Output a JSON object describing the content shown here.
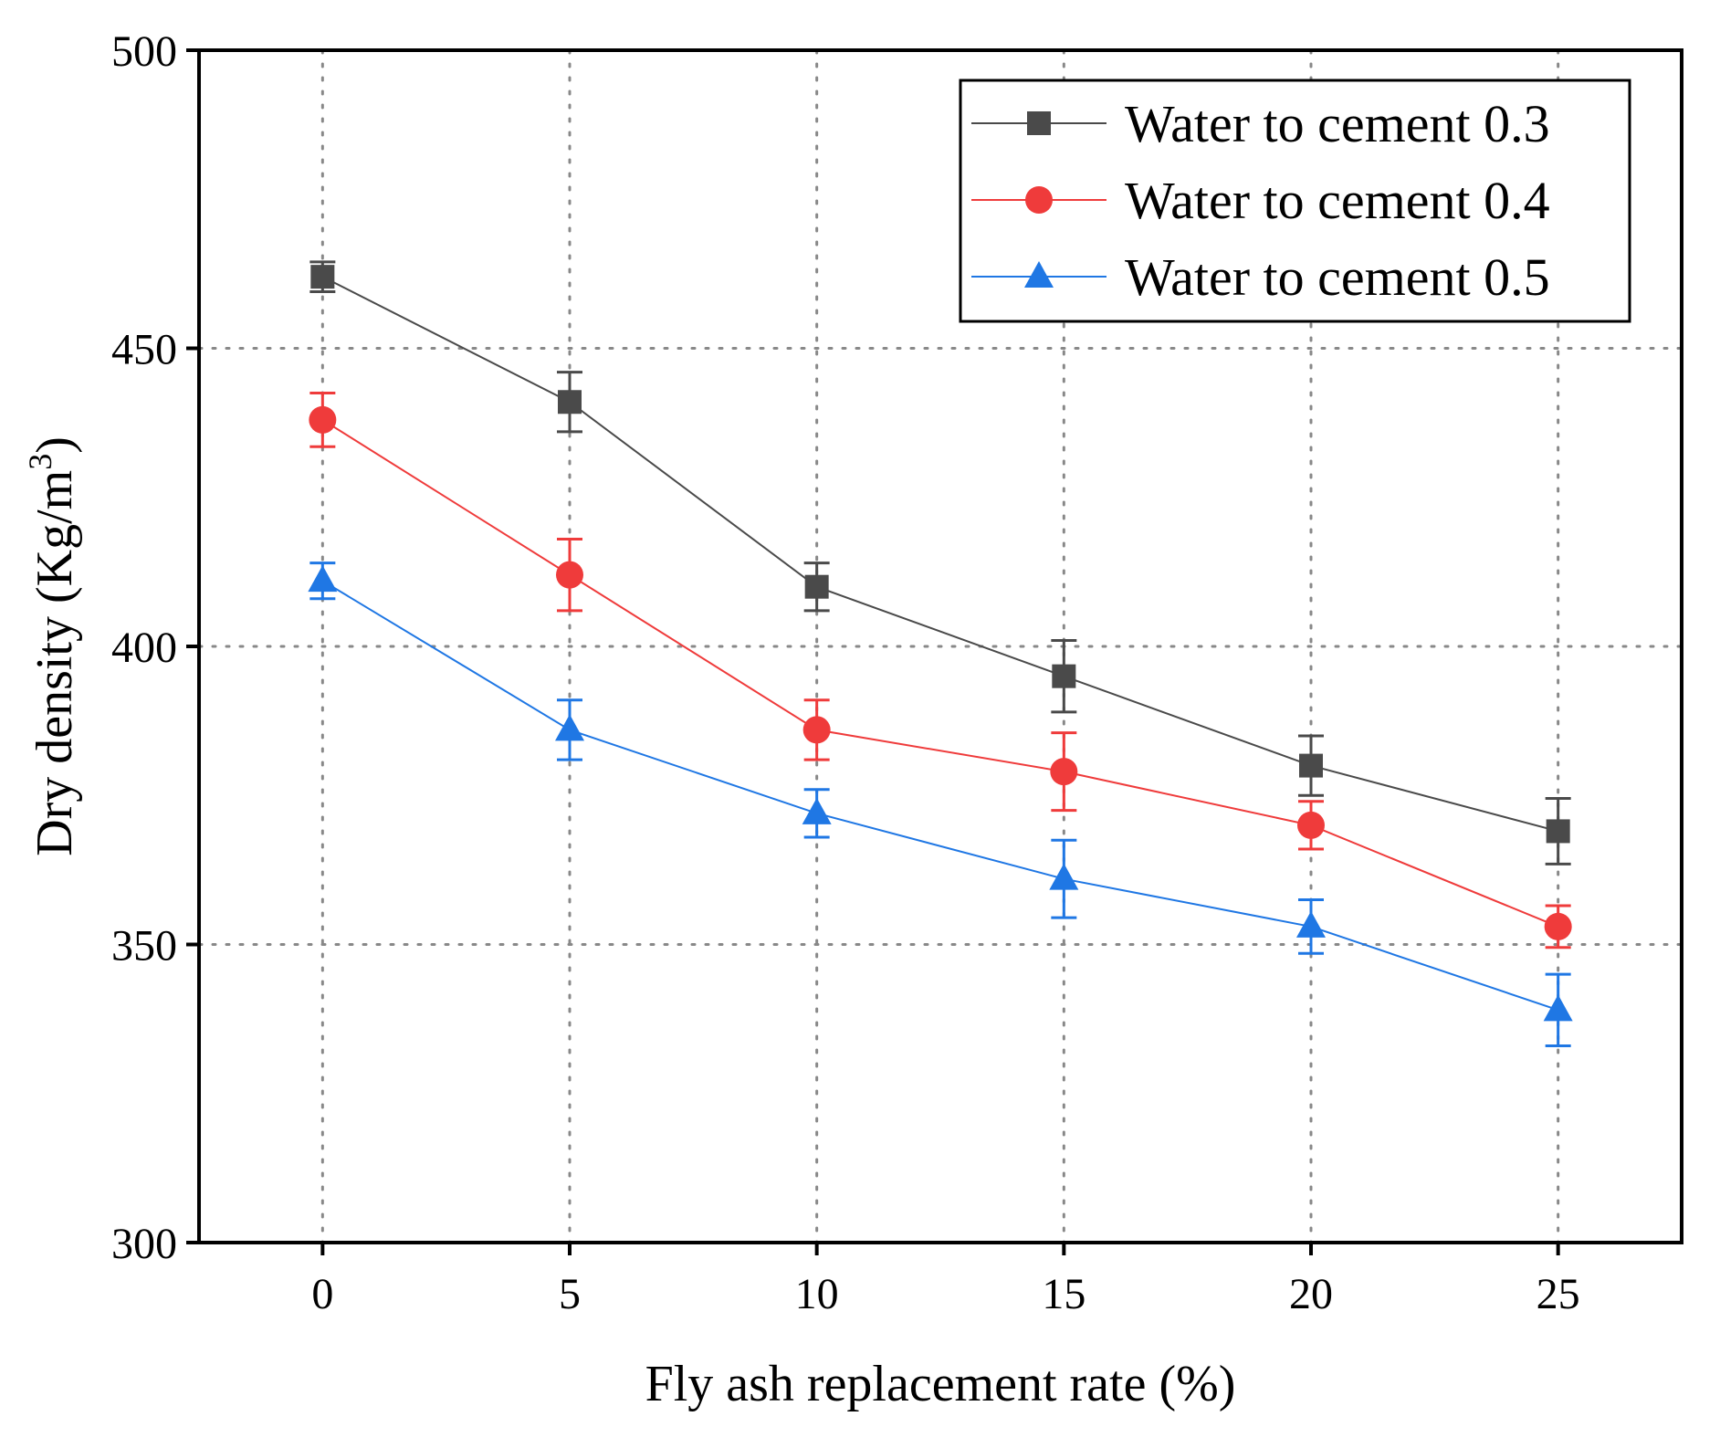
{
  "chart_data": {
    "type": "line",
    "title": "",
    "xlabel": "Fly ash replacement rate (%)",
    "ylabel_main": "Dry density (Kg/m",
    "ylabel_sup": "3",
    "ylabel_close": ")",
    "x": [
      0,
      5,
      10,
      15,
      20,
      25
    ],
    "xticks": [
      0,
      5,
      10,
      15,
      20,
      25
    ],
    "xlim": [
      -2.5,
      27.5
    ],
    "yticks": [
      300,
      350,
      400,
      450,
      500
    ],
    "ylim": [
      300,
      500
    ],
    "grid": true,
    "legend_position": "top-right",
    "series": [
      {
        "name": "Water to cement 0.3",
        "marker": "square",
        "color": "#4a4a4a",
        "values": [
          462,
          441,
          410,
          395,
          380,
          369
        ],
        "errors": [
          2.5,
          5,
          4,
          6,
          5,
          5.5
        ]
      },
      {
        "name": "Water to cement 0.4",
        "marker": "circle",
        "color": "#ef3b3b",
        "values": [
          438,
          412,
          386,
          379,
          370,
          353
        ],
        "errors": [
          4.5,
          6,
          5,
          6.5,
          4,
          3.5
        ]
      },
      {
        "name": "Water to cement 0.5",
        "marker": "triangle",
        "color": "#1f77e4",
        "values": [
          411,
          386,
          372,
          361,
          353,
          339
        ],
        "errors": [
          3,
          5,
          4,
          6.5,
          4.5,
          6
        ]
      }
    ]
  }
}
